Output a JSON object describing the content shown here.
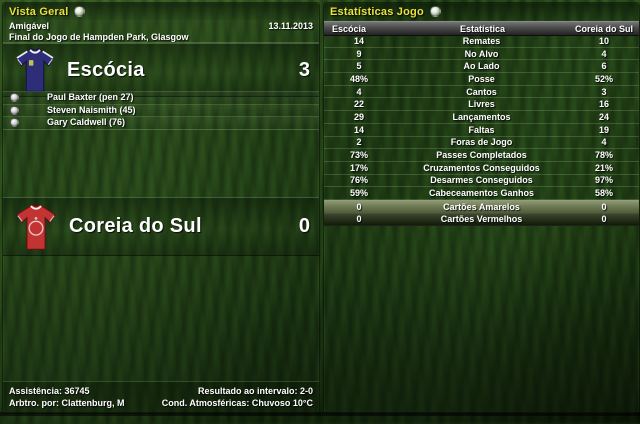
{
  "colors": {
    "title_accent": "#e8e23b",
    "text": "#ffffff",
    "header_bar_top": "#757575",
    "header_bar_bottom": "#232323",
    "yellow_cards_row": "#6b7750",
    "red_cards_row": "#242e18",
    "home_shirt": "#2e2e78",
    "away_shirt": "#c23333"
  },
  "left_panel": {
    "title": "Vista Geral",
    "title_icon": "football-icon",
    "competition": "Amigável",
    "date": "13.11.2013",
    "venue": "Final do Jogo de Hampden Park, Glasgow",
    "home_team": {
      "name": "Escócia",
      "score": "3"
    },
    "scorers": [
      {
        "player": "Paul Baxter (pen 27)"
      },
      {
        "player": "Steven Naismith (45)"
      },
      {
        "player": "Gary Caldwell (76)"
      }
    ],
    "away_team": {
      "name": "Coreia do Sul",
      "score": "0"
    },
    "footer": {
      "attendance": "Assistência: 36745",
      "referee": "Arbtro. por: Clattenburg, M",
      "half_time_result": "Resultado ao intervalo: 2-0",
      "conditions": "Cond. Atmosféricas: Chuvoso 10°C"
    }
  },
  "right_panel": {
    "title": "Estatísticas Jogo",
    "title_icon": "football-icon",
    "table": {
      "headers": {
        "home": "Escócia",
        "stat": "Estatística",
        "away": "Coreia do Sul"
      },
      "rows": [
        {
          "home": "14",
          "stat": "Remates",
          "away": "10"
        },
        {
          "home": "9",
          "stat": "No Alvo",
          "away": "4"
        },
        {
          "home": "5",
          "stat": "Ao Lado",
          "away": "6"
        },
        {
          "home": "48%",
          "stat": "Posse",
          "away": "52%"
        },
        {
          "home": "4",
          "stat": "Cantos",
          "away": "3"
        },
        {
          "home": "22",
          "stat": "Livres",
          "away": "16"
        },
        {
          "home": "29",
          "stat": "Lançamentos",
          "away": "24"
        },
        {
          "home": "14",
          "stat": "Faltas",
          "away": "19"
        },
        {
          "home": "2",
          "stat": "Foras de Jogo",
          "away": "4"
        },
        {
          "home": "73%",
          "stat": "Passes Completados",
          "away": "78%"
        },
        {
          "home": "17%",
          "stat": "Cruzamentos Conseguidos",
          "away": "21%"
        },
        {
          "home": "76%",
          "stat": "Desarmes Conseguidos",
          "away": "97%"
        },
        {
          "home": "59%",
          "stat": "Cabeceamentos Ganhos",
          "away": "58%"
        },
        {
          "home": "0",
          "stat": "Cartões Amarelos",
          "away": "0",
          "variant": "yellow-cards"
        },
        {
          "home": "0",
          "stat": "Cartões Vermelhos",
          "away": "0",
          "variant": "red-cards"
        }
      ]
    }
  }
}
